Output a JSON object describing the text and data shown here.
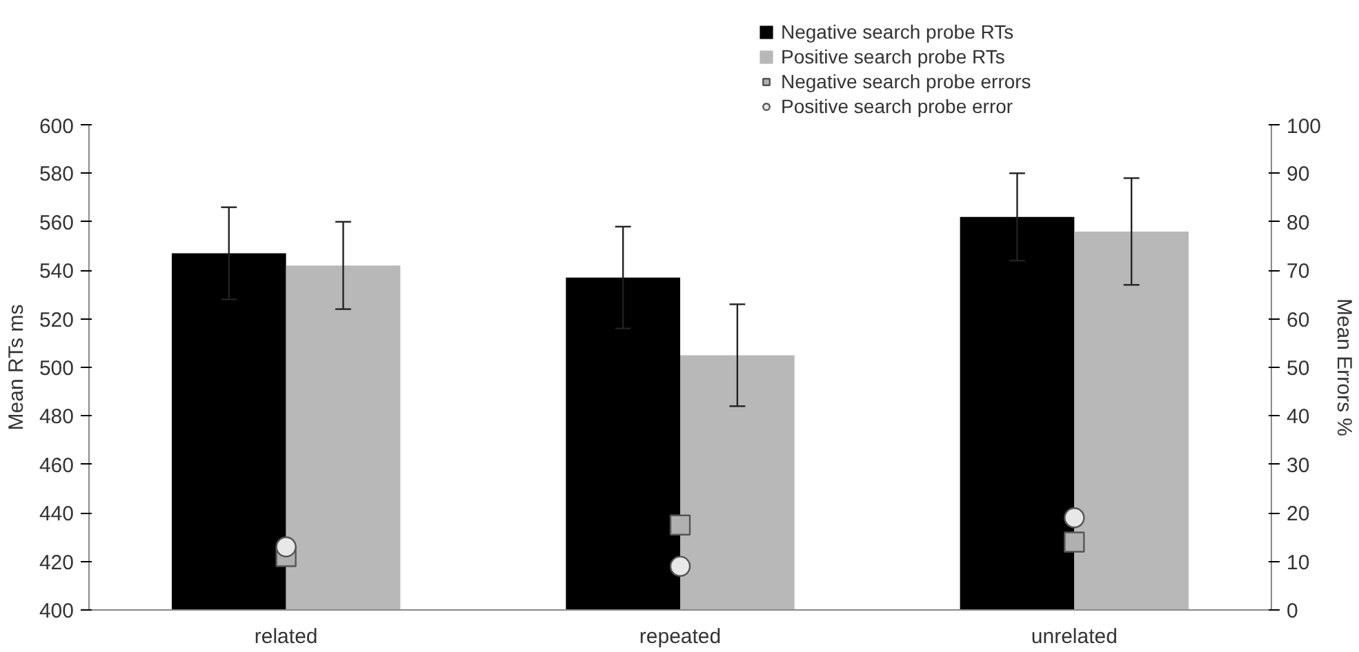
{
  "chart_data": {
    "type": "bar",
    "categories": [
      "related",
      "repeated",
      "unrelated"
    ],
    "ylabel": "Mean RTs ms",
    "y2label": "Mean Errors %",
    "ylim": [
      400,
      600
    ],
    "yticks": [
      400,
      420,
      440,
      460,
      480,
      500,
      520,
      540,
      560,
      580,
      600
    ],
    "y2lim": [
      0,
      100
    ],
    "y2ticks": [
      0,
      10,
      20,
      30,
      40,
      50,
      60,
      70,
      80,
      90,
      100
    ],
    "grid": false,
    "legend": "top",
    "series": [
      {
        "name": "Negative search probe RTs",
        "color": "#000000",
        "values": [
          547,
          537,
          562
        ],
        "errors": [
          19,
          21,
          18
        ]
      },
      {
        "name": "Positive search probe RTs",
        "color": "#b8b8b8",
        "values": [
          542,
          505,
          556
        ],
        "errors": [
          18,
          21,
          22
        ]
      },
      {
        "name": "Negative search probe errors",
        "type": "scatter",
        "marker": "square",
        "axis": "y2",
        "color": "#b0b0b0",
        "x": [
          "related",
          "repeated",
          "unrelated"
        ],
        "values": [
          11,
          17.5,
          14
        ]
      },
      {
        "name": "Positive search probe error",
        "type": "scatter",
        "marker": "circle",
        "axis": "y2",
        "color": "#e8e8e8",
        "x": [
          "related",
          "repeated",
          "unrelated"
        ],
        "values": [
          13,
          9,
          19
        ]
      }
    ]
  }
}
